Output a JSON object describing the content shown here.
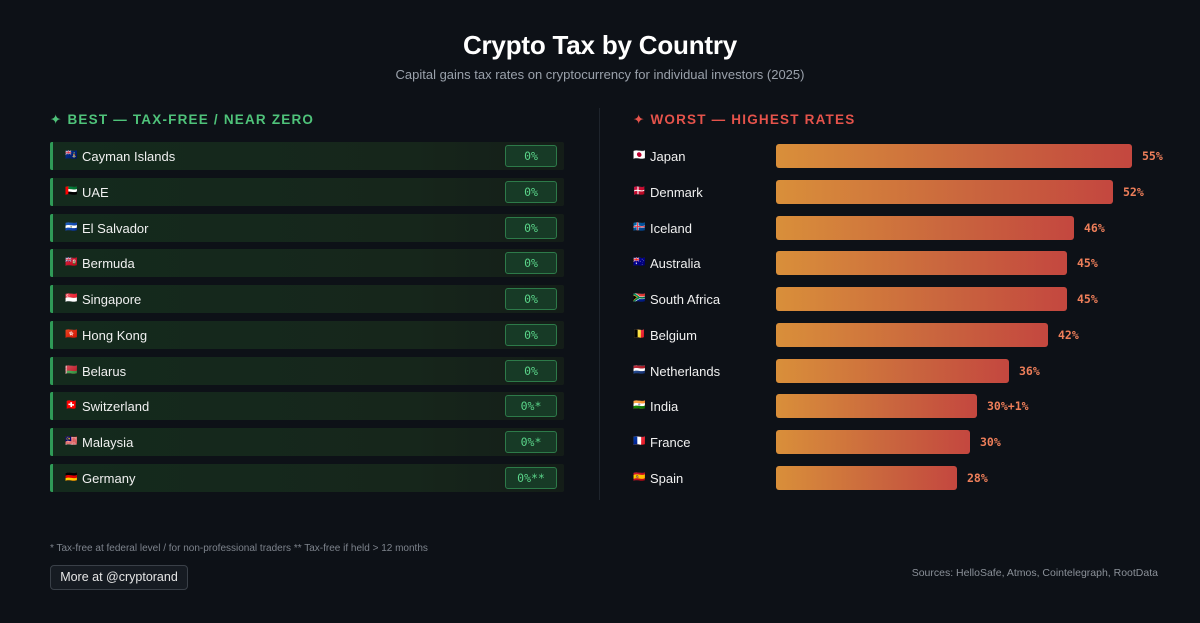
{
  "header": {
    "title": "Crypto Tax by Country",
    "subtitle": "Capital gains tax rates on cryptocurrency for individual investors (2025)"
  },
  "best_heading": "✦ BEST — TAX-FREE / NEAR ZERO",
  "worst_heading": "✦ WORST — HIGHEST RATES",
  "colors": {
    "best_accent": "#4fc37a",
    "worst_accent": "#e5534b",
    "bar_start": "#d98f3a",
    "bar_end": "#c4473f"
  },
  "chart_data": [
    {
      "type": "table",
      "title": "BEST — TAX-FREE / NEAR ZERO",
      "rows": [
        {
          "flag": "🇰🇾",
          "country": "Cayman Islands",
          "rate": "0%"
        },
        {
          "flag": "🇦🇪",
          "country": "UAE",
          "rate": "0%"
        },
        {
          "flag": "🇸🇻",
          "country": "El Salvador",
          "rate": "0%"
        },
        {
          "flag": "🇧🇲",
          "country": "Bermuda",
          "rate": "0%"
        },
        {
          "flag": "🇸🇬",
          "country": "Singapore",
          "rate": "0%"
        },
        {
          "flag": "🇭🇰",
          "country": "Hong Kong",
          "rate": "0%"
        },
        {
          "flag": "🇧🇾",
          "country": "Belarus",
          "rate": "0%"
        },
        {
          "flag": "🇨🇭",
          "country": "Switzerland",
          "rate": "0%*"
        },
        {
          "flag": "🇲🇾",
          "country": "Malaysia",
          "rate": "0%*"
        },
        {
          "flag": "🇩🇪",
          "country": "Germany",
          "rate": "0%**"
        }
      ]
    },
    {
      "type": "bar",
      "title": "WORST — HIGHEST RATES",
      "orientation": "horizontal",
      "xlim": [
        0,
        55
      ],
      "categories": [
        "Japan",
        "Denmark",
        "Iceland",
        "Australia",
        "South Africa",
        "Belgium",
        "Netherlands",
        "India",
        "France",
        "Spain"
      ],
      "flags": [
        "🇯🇵",
        "🇩🇰",
        "🇮🇸",
        "🇦🇺",
        "🇿🇦",
        "🇧🇪",
        "🇳🇱",
        "🇮🇳",
        "🇫🇷",
        "🇪🇸"
      ],
      "values": [
        55,
        52,
        46,
        45,
        45,
        42,
        36,
        31,
        30,
        28
      ],
      "labels": [
        "55%",
        "52%",
        "46%",
        "45%",
        "45%",
        "42%",
        "36%",
        "30%+1%",
        "30%",
        "28%"
      ]
    }
  ],
  "footnote": "* Tax-free at federal level / for non-professional traders ** Tax-free if held > 12 months",
  "more_button": "More at @cryptorand",
  "sources": "Sources: HelloSafe, Atmos, Cointelegraph, RootData"
}
